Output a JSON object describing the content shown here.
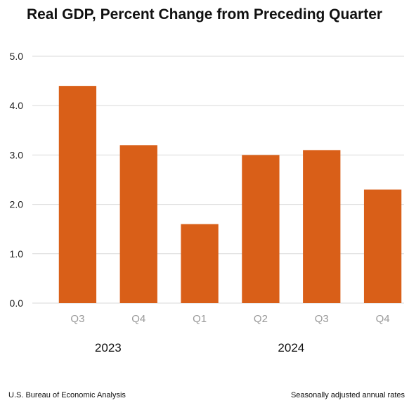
{
  "chart_data": {
    "type": "bar",
    "title": "Real GDP, Percent Change from Preceding Quarter",
    "categories": [
      "Q3",
      "Q4",
      "Q1",
      "Q2",
      "Q3",
      "Q4"
    ],
    "values": [
      4.4,
      3.2,
      1.6,
      3.0,
      3.1,
      2.3
    ],
    "year_groups": [
      {
        "label": "2023",
        "categories": [
          "Q3",
          "Q4"
        ]
      },
      {
        "label": "2024",
        "categories": [
          "Q1",
          "Q2",
          "Q3",
          "Q4"
        ]
      }
    ],
    "ylim": [
      0,
      5
    ],
    "y_ticks": [
      "0.0",
      "1.0",
      "2.0",
      "3.0",
      "4.0",
      "5.0"
    ],
    "grid": true,
    "bar_color": "#d95f18",
    "legend": "none"
  },
  "footer": {
    "source": "U.S. Bureau of Economic Analysis",
    "note": "Seasonally adjusted annual rates"
  }
}
